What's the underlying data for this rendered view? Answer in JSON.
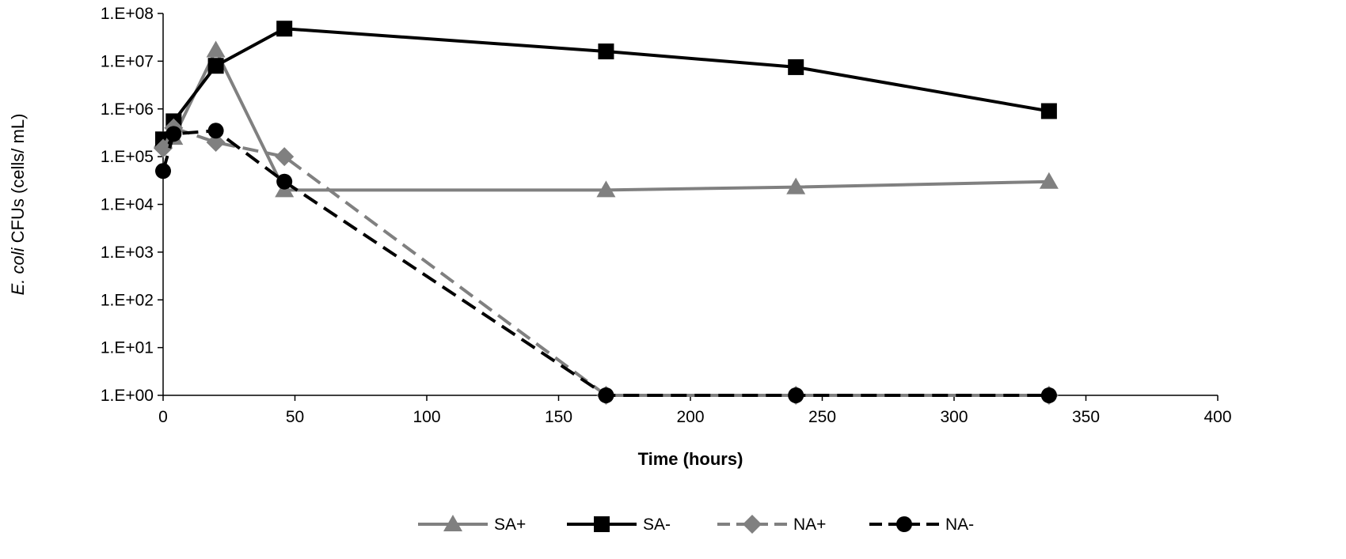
{
  "chart_data": {
    "type": "line",
    "title": "",
    "xlabel": "Time (hours)",
    "ylabel_species": "E. coli",
    "ylabel_rest": " CFUs (cells/ mL)",
    "xlim": [
      0,
      400
    ],
    "ylim": [
      1,
      100000000
    ],
    "yscale": "log",
    "x_ticks": [
      0,
      50,
      100,
      150,
      200,
      250,
      300,
      350,
      400
    ],
    "y_ticks": [
      {
        "value": 1,
        "label": "1.E+00"
      },
      {
        "value": 10,
        "label": "1.E+01"
      },
      {
        "value": 100,
        "label": "1.E+02"
      },
      {
        "value": 1000,
        "label": "1.E+03"
      },
      {
        "value": 10000,
        "label": "1.E+04"
      },
      {
        "value": 100000,
        "label": "1.E+05"
      },
      {
        "value": 1000000,
        "label": "1.E+06"
      },
      {
        "value": 10000000,
        "label": "1.E+07"
      },
      {
        "value": 100000000,
        "label": "1.E+08"
      }
    ],
    "grid": false,
    "legend_position": "bottom",
    "series": [
      {
        "name": "SA+",
        "color": "#808080",
        "dash": "solid",
        "marker": "triangle",
        "points": [
          [
            0,
            220000
          ],
          [
            4,
            250000
          ],
          [
            20,
            17000000
          ],
          [
            46,
            20000
          ],
          [
            168,
            20000
          ],
          [
            240,
            23000
          ],
          [
            336,
            30000
          ]
        ]
      },
      {
        "name": "SA-",
        "color": "#000000",
        "dash": "solid",
        "marker": "square",
        "points": [
          [
            0,
            230000
          ],
          [
            4,
            550000
          ],
          [
            20,
            8000000
          ],
          [
            46,
            48000000
          ],
          [
            168,
            16000000
          ],
          [
            240,
            7500000
          ],
          [
            336,
            900000
          ]
        ]
      },
      {
        "name": "NA+",
        "color": "#808080",
        "dash": "dashed",
        "marker": "diamond",
        "points": [
          [
            0,
            150000
          ],
          [
            4,
            400000
          ],
          [
            20,
            200000
          ],
          [
            46,
            100000
          ],
          [
            168,
            1
          ],
          [
            240,
            1
          ],
          [
            336,
            1
          ]
        ]
      },
      {
        "name": "NA-",
        "color": "#000000",
        "dash": "dashed",
        "marker": "circle",
        "points": [
          [
            0,
            50000
          ],
          [
            4,
            300000
          ],
          [
            20,
            350000
          ],
          [
            46,
            30000
          ],
          [
            168,
            1
          ],
          [
            240,
            1
          ],
          [
            336,
            1
          ]
        ]
      }
    ]
  }
}
